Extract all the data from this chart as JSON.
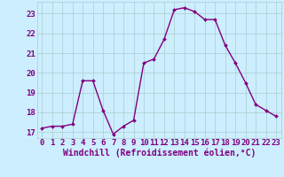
{
  "x": [
    0,
    1,
    2,
    3,
    4,
    5,
    6,
    7,
    8,
    9,
    10,
    11,
    12,
    13,
    14,
    15,
    16,
    17,
    18,
    19,
    20,
    21,
    22,
    23
  ],
  "y": [
    17.2,
    17.3,
    17.3,
    17.4,
    19.6,
    19.6,
    18.1,
    16.9,
    17.3,
    17.6,
    20.5,
    20.7,
    21.7,
    23.2,
    23.3,
    23.1,
    22.7,
    22.7,
    21.4,
    20.5,
    19.5,
    18.4,
    18.1,
    17.8
  ],
  "line_color": "#800080",
  "marker_color": "#800080",
  "bg_color": "#cceeff",
  "grid_color": "#aacccc",
  "xlabel": "Windchill (Refroidissement éolien,°C)",
  "ylim": [
    16.7,
    23.6
  ],
  "xlim": [
    -0.5,
    23.5
  ],
  "yticks": [
    17,
    18,
    19,
    20,
    21,
    22,
    23
  ],
  "xticks": [
    0,
    1,
    2,
    3,
    4,
    5,
    6,
    7,
    8,
    9,
    10,
    11,
    12,
    13,
    14,
    15,
    16,
    17,
    18,
    19,
    20,
    21,
    22,
    23
  ],
  "xtick_labels": [
    "0",
    "1",
    "2",
    "3",
    "4",
    "5",
    "6",
    "7",
    "8",
    "9",
    "10",
    "11",
    "12",
    "13",
    "14",
    "15",
    "16",
    "17",
    "18",
    "19",
    "20",
    "21",
    "22",
    "23"
  ],
  "ytick_labels": [
    "17",
    "18",
    "19",
    "20",
    "21",
    "22",
    "23"
  ],
  "tick_fontsize": 6.5,
  "xlabel_fontsize": 7,
  "linewidth": 1.0,
  "markersize": 2.0
}
